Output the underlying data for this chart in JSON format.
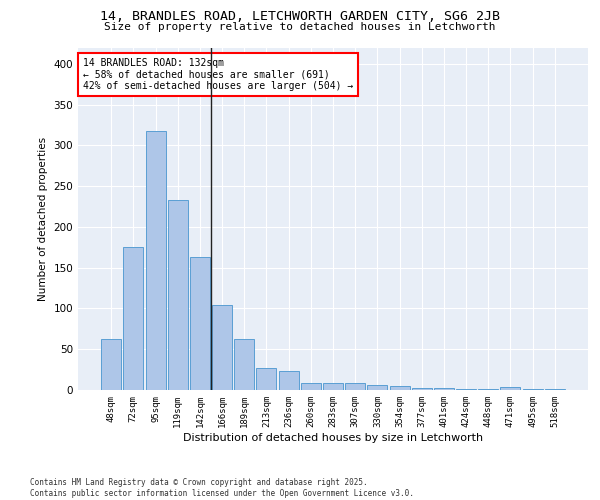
{
  "title_line1": "14, BRANDLES ROAD, LETCHWORTH GARDEN CITY, SG6 2JB",
  "title_line2": "Size of property relative to detached houses in Letchworth",
  "xlabel": "Distribution of detached houses by size in Letchworth",
  "ylabel": "Number of detached properties",
  "categories": [
    "48sqm",
    "72sqm",
    "95sqm",
    "119sqm",
    "142sqm",
    "166sqm",
    "189sqm",
    "213sqm",
    "236sqm",
    "260sqm",
    "283sqm",
    "307sqm",
    "330sqm",
    "354sqm",
    "377sqm",
    "401sqm",
    "424sqm",
    "448sqm",
    "471sqm",
    "495sqm",
    "518sqm"
  ],
  "values": [
    62,
    175,
    317,
    233,
    163,
    104,
    62,
    27,
    23,
    9,
    9,
    8,
    6,
    5,
    3,
    2,
    1,
    1,
    4,
    1,
    1
  ],
  "bar_color": "#aec6e8",
  "bar_edge_color": "#5a9fd4",
  "annotation_text": "14 BRANDLES ROAD: 132sqm\n← 58% of detached houses are smaller (691)\n42% of semi-detached houses are larger (504) →",
  "annotation_box_color": "white",
  "annotation_box_edge_color": "red",
  "vline_x": 4.5,
  "ylim": [
    0,
    420
  ],
  "yticks": [
    0,
    50,
    100,
    150,
    200,
    250,
    300,
    350,
    400
  ],
  "background_color": "#e8eef7",
  "grid_color": "white",
  "footer_text": "Contains HM Land Registry data © Crown copyright and database right 2025.\nContains public sector information licensed under the Open Government Licence v3.0.",
  "figsize": [
    6.0,
    5.0
  ],
  "dpi": 100
}
